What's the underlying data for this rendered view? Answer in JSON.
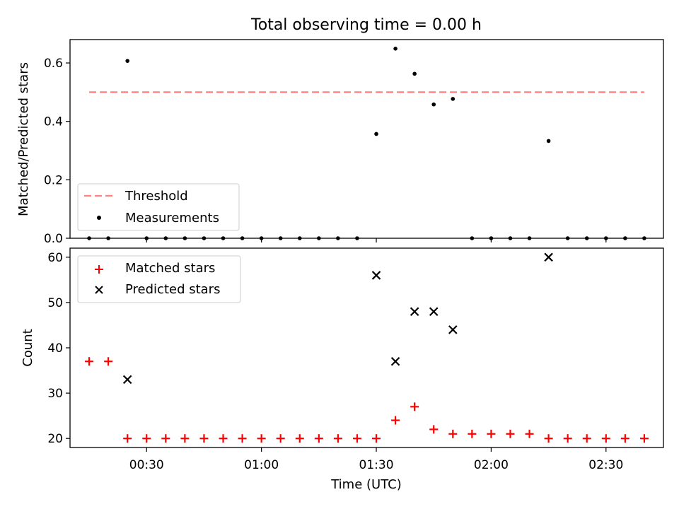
{
  "title": "Total observing time = 0.00 h",
  "chart_data": [
    {
      "type": "scatter",
      "ylabel": "Matched/Predicted stars",
      "ylim": [
        0,
        0.68
      ],
      "yticks": [
        0.0,
        0.2,
        0.4,
        0.6
      ],
      "ytick_labels": [
        "0.0",
        "0.2",
        "0.4",
        "0.6"
      ],
      "threshold": {
        "name": "Threshold",
        "value": 0.5,
        "x_start": "00:15",
        "x_end": "02:40",
        "color": "#ff7f7f"
      },
      "series": [
        {
          "name": "Measurements",
          "color": "#000000",
          "marker": "dot",
          "points": [
            {
              "x": "00:15",
              "y": 0.0
            },
            {
              "x": "00:20",
              "y": 0.0
            },
            {
              "x": "00:25",
              "y": 0.607
            },
            {
              "x": "00:30",
              "y": 0.0
            },
            {
              "x": "00:35",
              "y": 0.0
            },
            {
              "x": "00:40",
              "y": 0.0
            },
            {
              "x": "00:45",
              "y": 0.0
            },
            {
              "x": "00:50",
              "y": 0.0
            },
            {
              "x": "00:55",
              "y": 0.0
            },
            {
              "x": "01:00",
              "y": 0.0
            },
            {
              "x": "01:05",
              "y": 0.0
            },
            {
              "x": "01:10",
              "y": 0.0
            },
            {
              "x": "01:15",
              "y": 0.0
            },
            {
              "x": "01:20",
              "y": 0.0
            },
            {
              "x": "01:25",
              "y": 0.0
            },
            {
              "x": "01:30",
              "y": 0.357
            },
            {
              "x": "01:35",
              "y": 0.649
            },
            {
              "x": "01:40",
              "y": 0.563
            },
            {
              "x": "01:45",
              "y": 0.458
            },
            {
              "x": "01:50",
              "y": 0.477
            },
            {
              "x": "01:55",
              "y": 0.0
            },
            {
              "x": "02:00",
              "y": 0.0
            },
            {
              "x": "02:05",
              "y": 0.0
            },
            {
              "x": "02:10",
              "y": 0.0
            },
            {
              "x": "02:15",
              "y": 0.333
            },
            {
              "x": "02:20",
              "y": 0.0
            },
            {
              "x": "02:25",
              "y": 0.0
            },
            {
              "x": "02:30",
              "y": 0.0
            },
            {
              "x": "02:35",
              "y": 0.0
            },
            {
              "x": "02:40",
              "y": 0.0
            }
          ]
        }
      ],
      "legend": {
        "placement": "lower-left",
        "entries": [
          "Threshold",
          "Measurements"
        ]
      }
    },
    {
      "type": "scatter",
      "xlabel": "Time (UTC)",
      "ylabel": "Count",
      "ylim": [
        18,
        62
      ],
      "yticks": [
        20,
        30,
        40,
        50,
        60
      ],
      "ytick_labels": [
        "20",
        "30",
        "40",
        "50",
        "60"
      ],
      "xlim": [
        "00:10",
        "02:45"
      ],
      "xticks": [
        "00:30",
        "01:00",
        "01:30",
        "02:00",
        "02:30"
      ],
      "series": [
        {
          "name": "Matched stars",
          "color": "#ff0000",
          "marker": "plus",
          "points": [
            {
              "x": "00:15",
              "y": 37
            },
            {
              "x": "00:20",
              "y": 37
            },
            {
              "x": "00:25",
              "y": 20
            },
            {
              "x": "00:30",
              "y": 20
            },
            {
              "x": "00:35",
              "y": 20
            },
            {
              "x": "00:40",
              "y": 20
            },
            {
              "x": "00:45",
              "y": 20
            },
            {
              "x": "00:50",
              "y": 20
            },
            {
              "x": "00:55",
              "y": 20
            },
            {
              "x": "01:00",
              "y": 20
            },
            {
              "x": "01:05",
              "y": 20
            },
            {
              "x": "01:10",
              "y": 20
            },
            {
              "x": "01:15",
              "y": 20
            },
            {
              "x": "01:20",
              "y": 20
            },
            {
              "x": "01:25",
              "y": 20
            },
            {
              "x": "01:30",
              "y": 20
            },
            {
              "x": "01:35",
              "y": 24
            },
            {
              "x": "01:40",
              "y": 27
            },
            {
              "x": "01:45",
              "y": 22
            },
            {
              "x": "01:50",
              "y": 21
            },
            {
              "x": "01:55",
              "y": 21
            },
            {
              "x": "02:00",
              "y": 21
            },
            {
              "x": "02:05",
              "y": 21
            },
            {
              "x": "02:10",
              "y": 21
            },
            {
              "x": "02:15",
              "y": 20
            },
            {
              "x": "02:20",
              "y": 20
            },
            {
              "x": "02:25",
              "y": 20
            },
            {
              "x": "02:30",
              "y": 20
            },
            {
              "x": "02:35",
              "y": 20
            },
            {
              "x": "02:40",
              "y": 20
            }
          ]
        },
        {
          "name": "Predicted stars",
          "color": "#000000",
          "marker": "x",
          "points": [
            {
              "x": "00:25",
              "y": 33
            },
            {
              "x": "01:30",
              "y": 56
            },
            {
              "x": "01:35",
              "y": 37
            },
            {
              "x": "01:40",
              "y": 48
            },
            {
              "x": "01:45",
              "y": 48
            },
            {
              "x": "01:50",
              "y": 44
            },
            {
              "x": "02:15",
              "y": 60
            }
          ]
        }
      ],
      "legend": {
        "placement": "top-left",
        "entries": [
          "Matched stars",
          "Predicted stars"
        ]
      }
    }
  ]
}
